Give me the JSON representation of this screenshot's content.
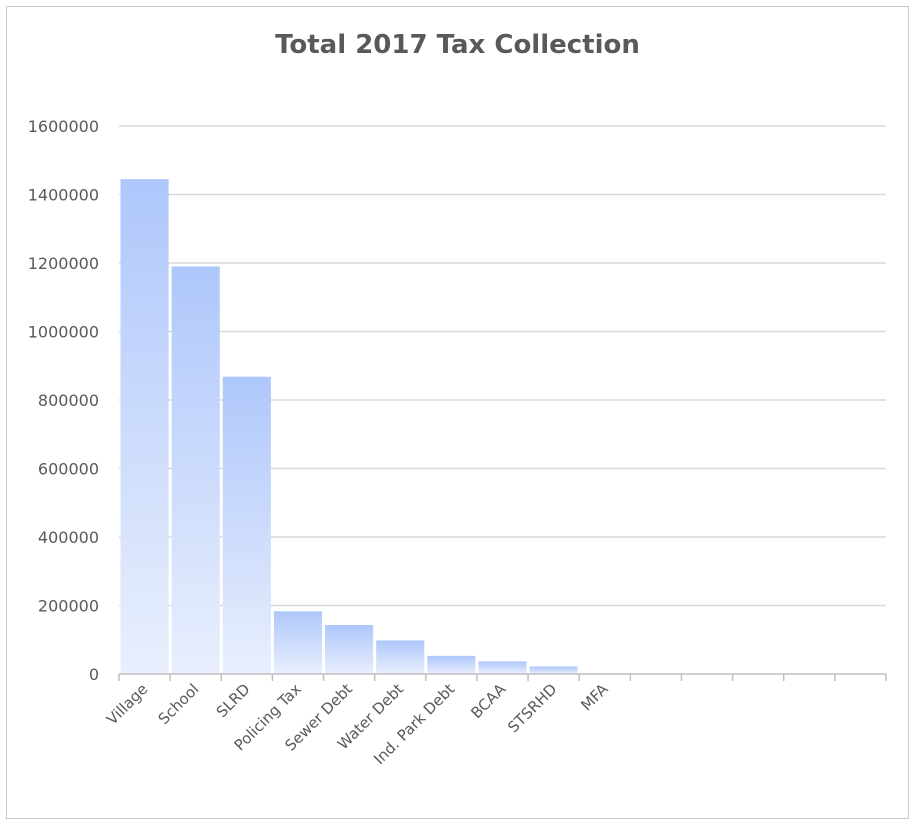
{
  "chart_data": {
    "type": "bar",
    "title": "Total 2017 Tax Collection",
    "xlabel": "",
    "ylabel": "",
    "ylim": [
      0,
      1600000
    ],
    "yticks": [
      0,
      200000,
      400000,
      600000,
      800000,
      1000000,
      1200000,
      1400000,
      1600000
    ],
    "ytick_labels": [
      "0",
      "200000",
      "400000",
      "600000",
      "800000",
      "1000000",
      "1200000",
      "1400000",
      "1600000"
    ],
    "categories": [
      "Village",
      "School",
      "SLRD",
      "Policing Tax",
      "Sewer Debt",
      "Water Debt",
      "Ind. Park Debt",
      "BCAA",
      "STSRHD",
      "MFA",
      "",
      "",
      "",
      "",
      ""
    ],
    "values": [
      1445000,
      1190000,
      868000,
      183000,
      143000,
      98000,
      53000,
      37000,
      22000,
      2000,
      0,
      0,
      0,
      0,
      0
    ],
    "grid": true,
    "legend": "none",
    "colors": {
      "bar_top": "#aec7fb",
      "bar_bottom": "#e9effd",
      "grid": "#d9d9d9",
      "axis": "#bfbfbf",
      "text": "#595959"
    }
  }
}
